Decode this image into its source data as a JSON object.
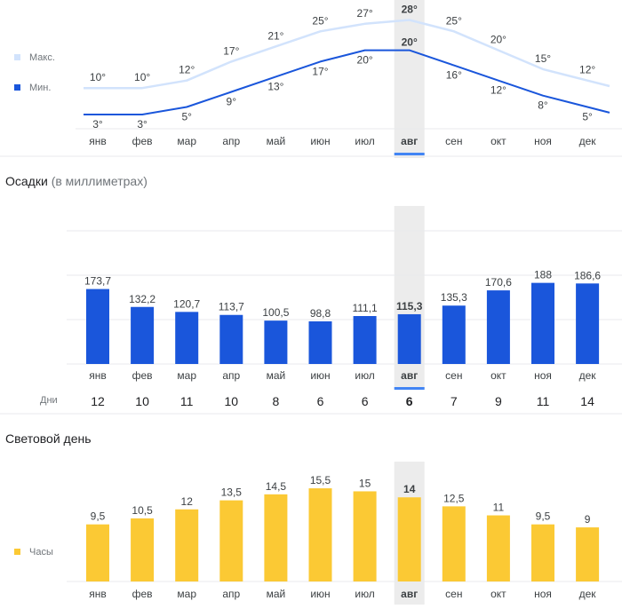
{
  "months": [
    "янв",
    "фев",
    "мар",
    "апр",
    "май",
    "июн",
    "июл",
    "авг",
    "сен",
    "окт",
    "ноя",
    "дек"
  ],
  "selected_month_index": 7,
  "colors": {
    "max_line": "#d2e3fc",
    "min_line": "#1a56db",
    "bars_blue": "#1a56db",
    "bars_yellow": "#fbc934",
    "highlight": "#ececec",
    "selected_underline": "#4285f4",
    "grid": "#e8eaed",
    "text": "#3c4043",
    "muted": "#70757a"
  },
  "temperature": {
    "legend": {
      "max_label": "Макс.",
      "min_label": "Мин."
    },
    "chart_data": {
      "type": "line",
      "series": [
        {
          "name": "Макс.",
          "values": [
            10,
            10,
            12,
            17,
            21,
            25,
            27,
            28,
            25,
            20,
            15,
            12
          ],
          "labels": [
            "10°",
            "10°",
            "12°",
            "17°",
            "21°",
            "25°",
            "27°",
            "28°",
            "25°",
            "20°",
            "15°",
            "12°"
          ]
        },
        {
          "name": "Мин.",
          "values": [
            3,
            3,
            5,
            9,
            13,
            17,
            20,
            20,
            16,
            12,
            8,
            5
          ],
          "labels": [
            "3°",
            "3°",
            "5°",
            "9°",
            "13°",
            "17°",
            "20°",
            "20°",
            "16°",
            "12°",
            "8°",
            "5°"
          ]
        }
      ]
    }
  },
  "precipitation": {
    "title": "Осадки",
    "subtitle": "(в миллиметрах)",
    "days_label": "Дни",
    "days": [
      "12",
      "10",
      "11",
      "10",
      "8",
      "6",
      "6",
      "6",
      "7",
      "9",
      "11",
      "14"
    ],
    "chart_data": {
      "type": "bar",
      "values": [
        173.7,
        132.2,
        120.7,
        113.7,
        100.5,
        98.8,
        111.1,
        115.3,
        135.3,
        170.6,
        188,
        186.6
      ],
      "labels": [
        "173,7",
        "132,2",
        "120,7",
        "113,7",
        "100,5",
        "98,8",
        "111,1",
        "115,3",
        "135,3",
        "170,6",
        "188",
        "186,6"
      ]
    }
  },
  "daylight": {
    "title": "Световой день",
    "legend_label": "Часы",
    "chart_data": {
      "type": "bar",
      "values": [
        9.5,
        10.5,
        12,
        13.5,
        14.5,
        15.5,
        15,
        14,
        12.5,
        11,
        9.5,
        9
      ],
      "labels": [
        "9,5",
        "10,5",
        "12",
        "13,5",
        "14,5",
        "15,5",
        "15",
        "14",
        "12,5",
        "11",
        "9,5",
        "9"
      ]
    }
  }
}
